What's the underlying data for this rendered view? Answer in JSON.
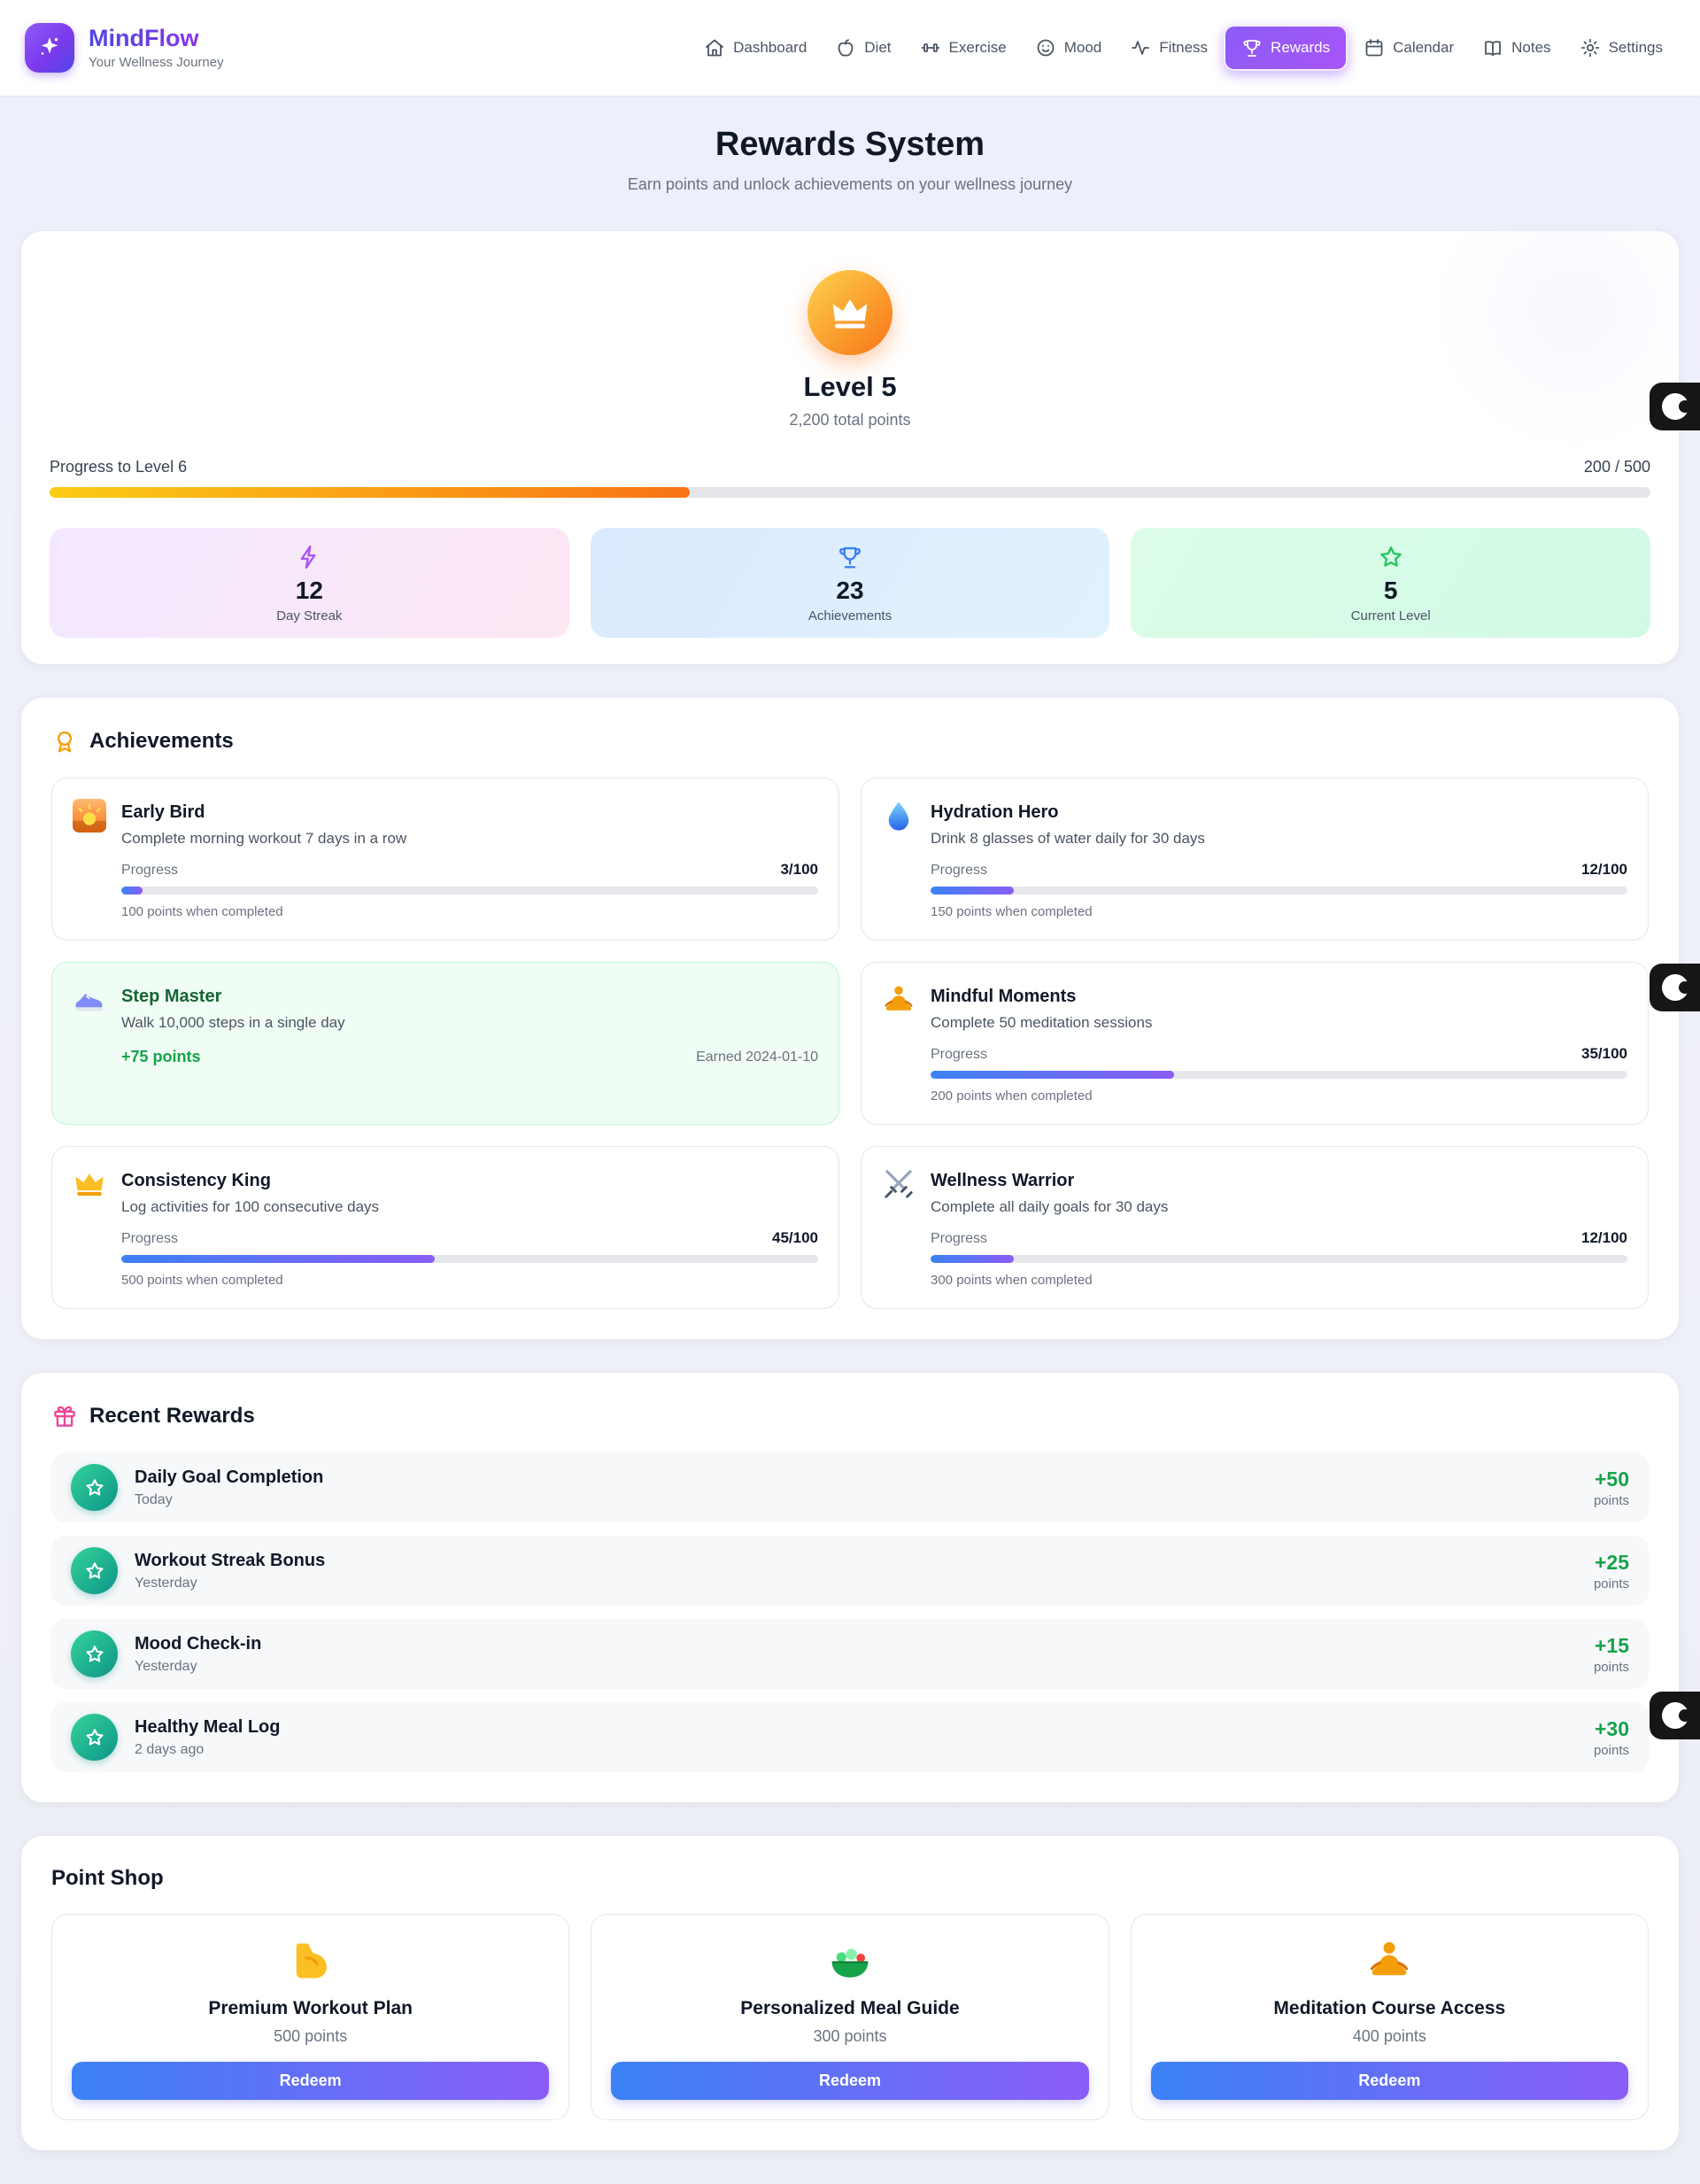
{
  "app": {
    "name": "MindFlow",
    "tagline": "Your Wellness Journey"
  },
  "nav": {
    "items": [
      {
        "label": "Dashboard",
        "icon": "home-icon",
        "active": false
      },
      {
        "label": "Diet",
        "icon": "apple-icon",
        "active": false
      },
      {
        "label": "Exercise",
        "icon": "dumbbell-icon",
        "active": false
      },
      {
        "label": "Mood",
        "icon": "smiley-icon",
        "active": false
      },
      {
        "label": "Fitness",
        "icon": "activity-icon",
        "active": false
      },
      {
        "label": "Rewards",
        "icon": "trophy-icon",
        "active": true
      },
      {
        "label": "Calendar",
        "icon": "calendar-icon",
        "active": false
      },
      {
        "label": "Notes",
        "icon": "book-icon",
        "active": false
      },
      {
        "label": "Settings",
        "icon": "gear-icon",
        "active": false
      }
    ]
  },
  "page": {
    "title": "Rewards System",
    "subtitle": "Earn points and unlock achievements on your wellness journey"
  },
  "level_card": {
    "level_label": "Level 5",
    "total_points": "2,200 total points",
    "progress_label": "Progress to Level 6",
    "progress_value": "200 / 500",
    "progress_pct": 40,
    "stats": [
      {
        "value": "12",
        "label": "Day Streak",
        "icon": "lightning-icon"
      },
      {
        "value": "23",
        "label": "Achievements",
        "icon": "trophy-icon"
      },
      {
        "value": "5",
        "label": "Current Level",
        "icon": "star-icon"
      }
    ]
  },
  "achievements": {
    "heading": "Achievements",
    "heading_icon": "medal-icon",
    "items": [
      {
        "icon": "sunrise-icon",
        "title": "Early Bird",
        "description": "Complete morning workout 7 days in a row",
        "progress_label": "Progress",
        "progress_value": "3/100",
        "progress_pct": 3,
        "reward_note": "100 points when completed"
      },
      {
        "icon": "droplet-icon",
        "title": "Hydration Hero",
        "description": "Drink 8 glasses of water daily for 30 days",
        "progress_label": "Progress",
        "progress_value": "12/100",
        "progress_pct": 12,
        "reward_note": "150 points when completed"
      },
      {
        "icon": "sneaker-icon",
        "title": "Step Master",
        "description": "Walk 10,000 steps in a single day",
        "earned_points": "+75 points",
        "earned_date": "Earned 2024-01-10"
      },
      {
        "icon": "meditation-icon",
        "title": "Mindful Moments",
        "description": "Complete 50 meditation sessions",
        "progress_label": "Progress",
        "progress_value": "35/100",
        "progress_pct": 35,
        "reward_note": "200 points when completed"
      },
      {
        "icon": "crown-icon",
        "title": "Consistency King",
        "description": "Log activities for 100 consecutive days",
        "progress_label": "Progress",
        "progress_value": "45/100",
        "progress_pct": 45,
        "reward_note": "500 points when completed"
      },
      {
        "icon": "crossed-swords-icon",
        "title": "Wellness Warrior",
        "description": "Complete all daily goals for 30 days",
        "progress_label": "Progress",
        "progress_value": "12/100",
        "progress_pct": 12,
        "reward_note": "300 points when completed"
      }
    ]
  },
  "recent_rewards": {
    "heading": "Recent Rewards",
    "heading_icon": "gift-icon",
    "items": [
      {
        "icon": "star-icon",
        "title": "Daily Goal Completion",
        "date": "Today",
        "points": "+50",
        "points_label": "points"
      },
      {
        "icon": "star-icon",
        "title": "Workout Streak Bonus",
        "date": "Yesterday",
        "points": "+25",
        "points_label": "points"
      },
      {
        "icon": "star-icon",
        "title": "Mood Check-in",
        "date": "Yesterday",
        "points": "+15",
        "points_label": "points"
      },
      {
        "icon": "star-icon",
        "title": "Healthy Meal Log",
        "date": "2 days ago",
        "points": "+30",
        "points_label": "points"
      }
    ]
  },
  "point_shop": {
    "heading": "Point Shop",
    "items": [
      {
        "icon": "muscle-icon",
        "title": "Premium Workout Plan",
        "cost": "500 points",
        "button_label": "Redeem"
      },
      {
        "icon": "salad-icon",
        "title": "Personalized Meal Guide",
        "cost": "300 points",
        "button_label": "Redeem"
      },
      {
        "icon": "lotus-icon",
        "title": "Meditation Course Access",
        "cost": "400 points",
        "button_label": "Redeem"
      }
    ]
  },
  "colors": {
    "brand_purple": "#8b5cf6",
    "brand_indigo": "#4f46e5",
    "nav_active_gradient": [
      "#8b5cf6",
      "#a855f7"
    ],
    "crown_badge_gradient": [
      "#fcd34d",
      "#f97316"
    ],
    "level_progress_gradient": [
      "#facc15",
      "#f97316"
    ],
    "achievement_progress_gradient": [
      "#3b82f6",
      "#8b5cf6"
    ],
    "success_green": "#16a34a",
    "earned_card_bg": "#f0fdf4",
    "earned_card_border": "#bbf7d0",
    "reward_badge_gradient": [
      "#34d399",
      "#0d9488"
    ],
    "redeem_gradient": [
      "#3b82f6",
      "#8b5cf6"
    ]
  }
}
